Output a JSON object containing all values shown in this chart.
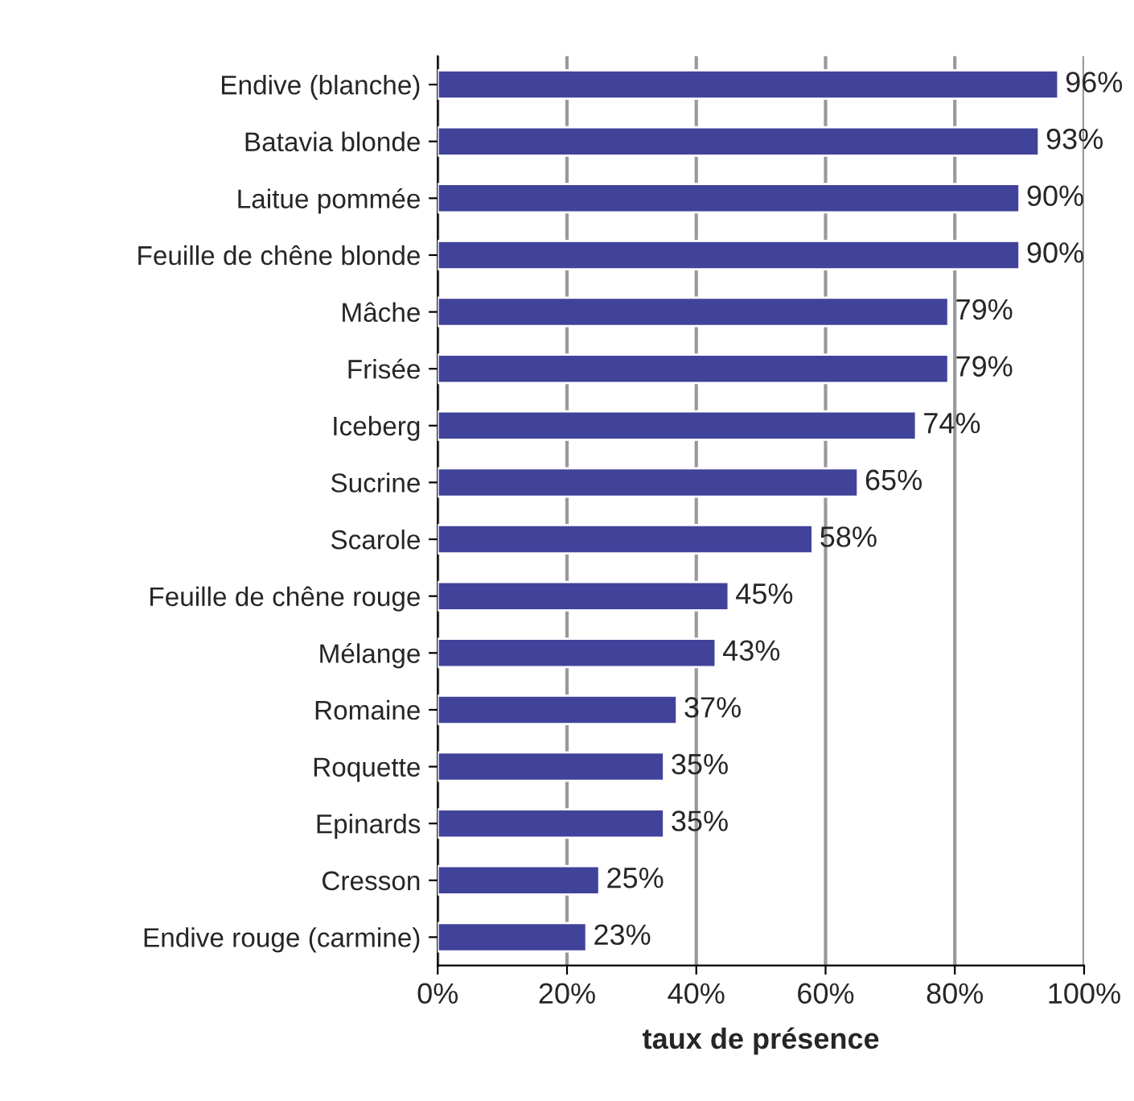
{
  "chart_data": {
    "type": "bar",
    "orientation": "horizontal",
    "xlabel": "taux de présence",
    "categories": [
      "Endive (blanche)",
      "Batavia blonde",
      "Laitue pommée",
      "Feuille de chêne blonde",
      "Mâche",
      "Frisée",
      "Iceberg",
      "Sucrine",
      "Scarole",
      "Feuille de chêne rouge",
      "Mélange",
      "Romaine",
      "Roquette",
      "Epinards",
      "Cresson",
      "Endive rouge (carmine)"
    ],
    "values": [
      96,
      93,
      90,
      90,
      79,
      79,
      74,
      65,
      58,
      45,
      43,
      37,
      35,
      35,
      25,
      23
    ],
    "value_labels": [
      "96%",
      "93%",
      "90%",
      "90%",
      "79%",
      "79%",
      "74%",
      "65%",
      "58%",
      "45%",
      "43%",
      "37%",
      "35%",
      "35%",
      "25%",
      "23%"
    ],
    "color": "#41429a",
    "xlim": [
      0,
      100
    ],
    "xticks": [
      {
        "value": 0,
        "label": "0%"
      },
      {
        "value": 20,
        "label": "20%"
      },
      {
        "value": 40,
        "label": "40%"
      },
      {
        "value": 60,
        "label": "60%"
      },
      {
        "value": 80,
        "label": "80%"
      },
      {
        "value": 100,
        "label": "100%"
      }
    ],
    "grid": "x",
    "legend": false
  }
}
